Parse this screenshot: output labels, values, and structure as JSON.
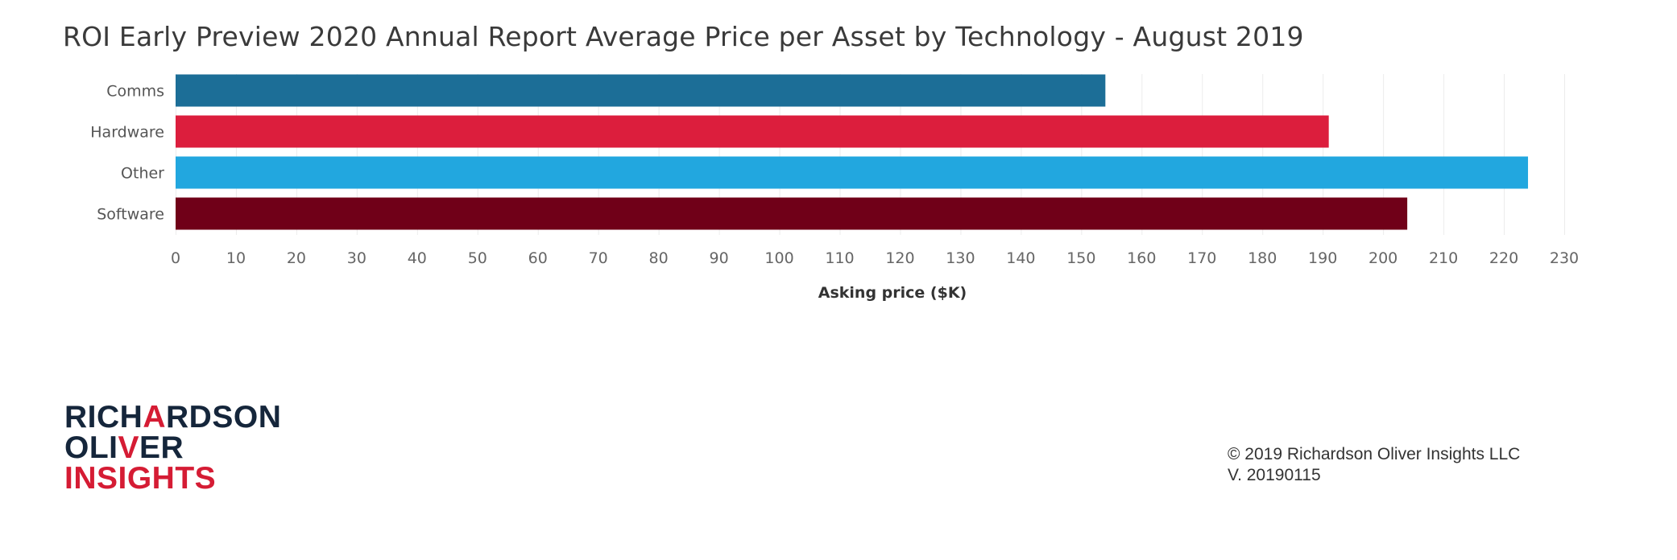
{
  "chart_data": {
    "type": "bar",
    "orientation": "horizontal",
    "title": "ROI Early Preview 2020 Annual Report Average Price per Asset by Technology - August 2019",
    "categories": [
      "Comms",
      "Hardware",
      "Other",
      "Software"
    ],
    "values": [
      154,
      191,
      224,
      204
    ],
    "colors": [
      "#1c6e97",
      "#dc1e3d",
      "#22a7df",
      "#700018"
    ],
    "xlabel": "Asking price ($K)",
    "ylabel": "",
    "xlim": [
      0,
      230
    ],
    "xticks": [
      0,
      10,
      20,
      30,
      40,
      50,
      60,
      70,
      80,
      90,
      100,
      110,
      120,
      130,
      140,
      150,
      160,
      170,
      180,
      190,
      200,
      210,
      220,
      230
    ],
    "grid": true,
    "legend": "none"
  },
  "logo": {
    "line1_pre": "RICH",
    "line1_accent": "A",
    "line1_post": "RDSON",
    "line2_pre": "OLI",
    "line2_accent": "V",
    "line2_post": "ER",
    "line3": "INSIGHTS"
  },
  "footer": {
    "copyright": "© 2019 Richardson Oliver Insights LLC",
    "version": "V. 20190115"
  }
}
